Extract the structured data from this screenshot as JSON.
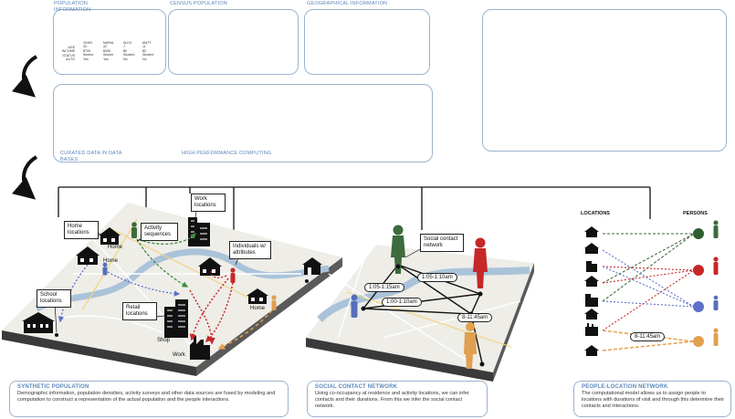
{
  "top_panels": {
    "population_info": "POPULATION INFORMATION",
    "census_population": "CENSUS POPULATION",
    "geographical_info": "GEOGRAPHICAL INFORMATION"
  },
  "population_table": {
    "row_labels": [
      "AGE",
      "INCOME",
      "STATUS",
      "AUTO"
    ],
    "people": [
      {
        "name": "JOHN",
        "age": "43",
        "income": "$70K",
        "status": "Worker",
        "auto": "Yes"
      },
      {
        "name": "MARIA",
        "age": "42",
        "income": "$45K",
        "status": "Worker",
        "auto": "Yes"
      },
      {
        "name": "ALEX",
        "age": "7",
        "income": "$0",
        "status": "Student",
        "auto": "No"
      },
      {
        "name": "MATT",
        "age": "11",
        "income": "$0",
        "status": "Student",
        "auto": "No"
      }
    ]
  },
  "middle": {
    "curated_data": "CURATED DATA IN DATA BASES",
    "hpc": "HIGH PERFORMANCE COMPUTING"
  },
  "synthetic": {
    "callouts": {
      "home_locations": "Home locations",
      "activity_sequences": "Activity sequences",
      "work_locations": "Work locations",
      "individuals": "Individuals w/ attributes",
      "school_locations": "School locations",
      "retail_locations": "Retail locations"
    },
    "place_labels": {
      "home1": "Home",
      "home2": "Home",
      "home3": "Home",
      "shop": "Shop",
      "work": "Work"
    }
  },
  "social": {
    "callout": "Social contact network",
    "times": [
      "1:05-1:15am",
      "1:05-1:10am",
      "1:00-1:10am",
      "8-11:45am"
    ]
  },
  "plnet": {
    "locations": "LOCATIONS",
    "persons": "PERSONS",
    "time": "8-11:45am"
  },
  "footers": {
    "synthetic": {
      "title": "SYNTHETIC POPULATION",
      "body": "Demographic information, population densities, activity surveys and other data sources are fused by modeling and computation to construct a representation of the actual population and the people interactions."
    },
    "social": {
      "title": "SOCIAL CONTACT NETWORK",
      "body": "Using co-occupancy at residence and activity locations, we can infer contacts and their durations. From this we infer the social contact network."
    },
    "plnet": {
      "title": "PEOPLE-LOCATION NETWORK",
      "body": "The computational model allows us to assign people to locations with durations of visit and through this determine their contacts and interactions."
    }
  },
  "colors": {
    "frame_border": "#9bb3cf",
    "caption": "#5a86b8",
    "person_green": "#3d6b3d",
    "person_red": "#c62828",
    "person_blue": "#5570b8",
    "person_orange": "#e0a050",
    "contact_green": "#3d8b3d",
    "contact_red": "#c62828",
    "contact_blue": "#6070c8",
    "contact_orange": "#e3a04f"
  }
}
